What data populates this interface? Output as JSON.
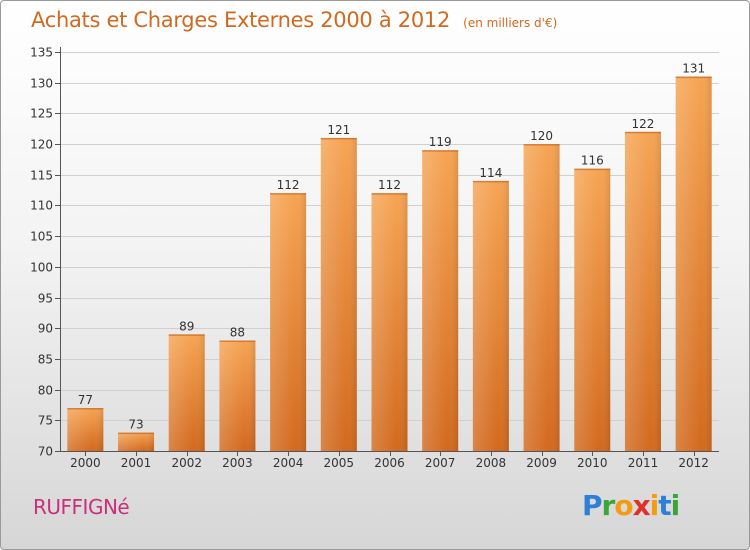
{
  "header": {
    "title": "Achats et Charges Externes 2000 à 2012",
    "unit": "(en milliers d'€)"
  },
  "footer": {
    "commune": "RUFFIGNé",
    "logo_letters": [
      "P",
      "r",
      "o",
      "x",
      "i",
      "t",
      "i"
    ],
    "logo_colors": [
      "#2e7fd6",
      "#3aa53a",
      "#f39c12",
      "#e0302a",
      "#f39c12",
      "#2e7fd6",
      "#3aa53a"
    ]
  },
  "colors": {
    "bar_top": "#f6a453",
    "bar_bottom": "#d2691e",
    "text": "#333333",
    "accent": "#d2691e"
  },
  "chart_data": {
    "type": "bar",
    "title": "Achats et Charges Externes 2000 à 2012",
    "subtitle": "(en milliers d'€)",
    "categories": [
      "2000",
      "2001",
      "2002",
      "2003",
      "2004",
      "2005",
      "2006",
      "2007",
      "2008",
      "2009",
      "2010",
      "2011",
      "2012"
    ],
    "values": [
      77,
      73,
      89,
      88,
      112,
      121,
      112,
      119,
      114,
      120,
      116,
      122,
      131
    ],
    "ylim": [
      70,
      135
    ],
    "yticks": [
      70,
      75,
      80,
      85,
      90,
      95,
      100,
      105,
      110,
      115,
      120,
      125,
      130,
      135
    ],
    "grid": true,
    "xlabel": "",
    "ylabel": ""
  }
}
